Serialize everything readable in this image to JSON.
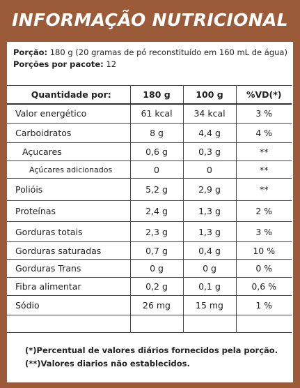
{
  "header": {
    "title": "INFORMAÇÃO NUTRICIONAL"
  },
  "serving": {
    "portion_label": "Porção:",
    "portion": "180 g (20 gramas de pó reconstituído em 160 mL de água)",
    "per_package_label": "Porções por pacote:",
    "per_package": "12"
  },
  "table": {
    "columns": [
      "Quantidade por:",
      "180 g",
      "100 g",
      "%VD(*)"
    ],
    "rows": [
      [
        "Valor energético",
        "61 kcal",
        "34 kcal",
        "3 %"
      ],
      [
        "Carboidratos",
        "8 g",
        "4,4 g",
        "4 %"
      ],
      [
        "Açucares",
        "0,6 g",
        "0,3 g",
        "**"
      ],
      [
        "Açúcares  adicionados",
        "0",
        "0",
        "**"
      ],
      [
        "Polióis",
        "5,2 g",
        "2,9 g",
        "**"
      ],
      [
        "Proteínas",
        "2,4 g",
        "1,3 g",
        "2 %"
      ],
      [
        "Gorduras totais",
        "2,3 g",
        "1,3 g",
        "3 %"
      ],
      [
        "Gorduras saturadas",
        "0,7 g",
        "0,4 g",
        "10 %"
      ],
      [
        "Gorduras Trans",
        "0 g",
        "0 g",
        "0 %"
      ],
      [
        "Fibra alimentar",
        "0,2 g",
        "0,1 g",
        "0,6 %"
      ],
      [
        "Sódio",
        "26 mg",
        "15 mg",
        "1 %"
      ]
    ]
  },
  "footnotes": [
    "(*)Percentual de valores diários fornecidos pela porção.",
    "(**)Valores diarios não establecidos."
  ]
}
